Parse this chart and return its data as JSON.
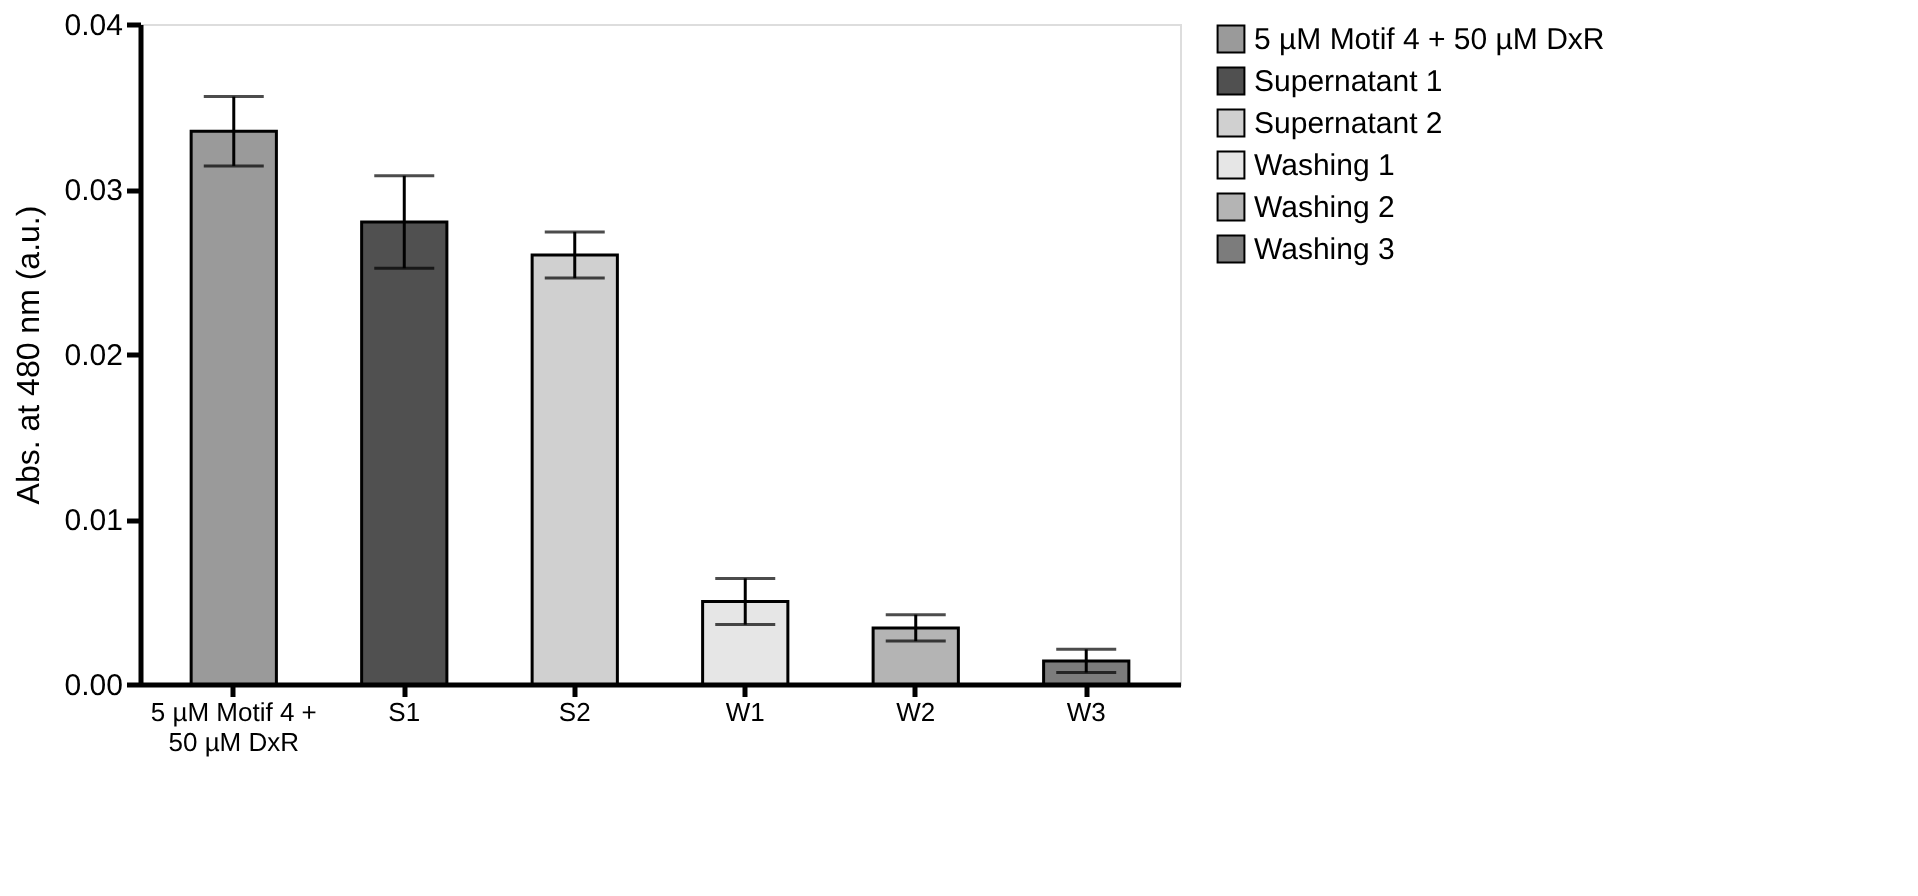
{
  "chart_data": {
    "type": "bar",
    "ylabel": "Abs. at 480 nm (a.u.)",
    "categories": [
      "5 µM Motif 4 + 50 µM DxR",
      "S1",
      "S2",
      "W1",
      "W2",
      "W3"
    ],
    "series": [
      {
        "name": "5 µM Motif 4 + 50 µM DxR",
        "color": "#9a9a9a",
        "values": [
          0.0335,
          null,
          null,
          null,
          null,
          null
        ],
        "errors": [
          0.0021,
          null,
          null,
          null,
          null,
          null
        ]
      },
      {
        "name": "Supernatant 1",
        "color": "#505050",
        "values": [
          null,
          0.028,
          null,
          null,
          null,
          null
        ],
        "errors": [
          null,
          0.0028,
          null,
          null,
          null,
          null
        ]
      },
      {
        "name": "Supernatant 2",
        "color": "#d0d0d0",
        "values": [
          null,
          null,
          0.026,
          null,
          null,
          null
        ],
        "errors": [
          null,
          null,
          0.0014,
          null,
          null,
          null
        ]
      },
      {
        "name": "Washing 1",
        "color": "#e6e6e6",
        "values": [
          null,
          null,
          null,
          0.005,
          null,
          null
        ],
        "errors": [
          null,
          null,
          null,
          0.0014,
          null,
          null
        ]
      },
      {
        "name": "Washing 2",
        "color": "#b4b4b4",
        "values": [
          null,
          null,
          null,
          null,
          0.0034,
          null
        ],
        "errors": [
          null,
          null,
          null,
          null,
          0.0008,
          null
        ]
      },
      {
        "name": "Washing 3",
        "color": "#7c7c7c",
        "values": [
          null,
          null,
          null,
          null,
          null,
          0.0014
        ],
        "errors": [
          null,
          null,
          null,
          null,
          null,
          0.0007
        ]
      }
    ],
    "ylim": [
      0,
      0.04
    ],
    "yticks": [
      {
        "value": 0,
        "label": "0.00"
      },
      {
        "value": 0.01,
        "label": "0.01"
      },
      {
        "value": 0.02,
        "label": "0.02"
      },
      {
        "value": 0.03,
        "label": "0.03"
      },
      {
        "value": 0.04,
        "label": "0.04"
      }
    ],
    "grid": false,
    "legend": "right"
  }
}
